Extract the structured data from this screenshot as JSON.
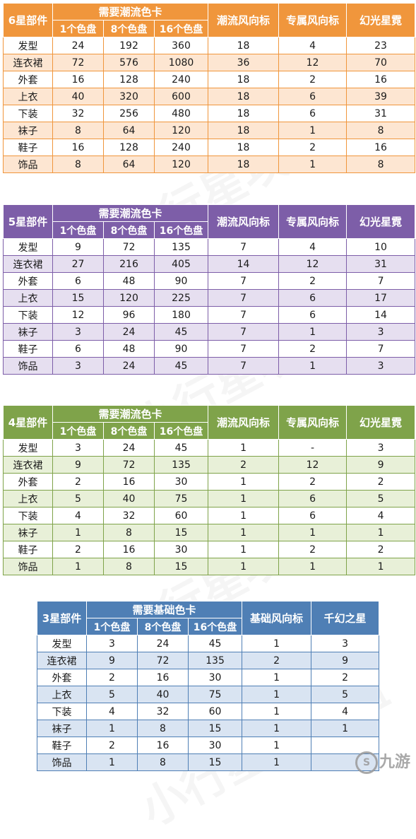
{
  "tables": [
    {
      "id": "t6",
      "colors": {
        "head": "#f0963c",
        "border": "#f0963c",
        "odd": "#ffffff",
        "even": "#fde6d2"
      },
      "head": {
        "part": "6星部件",
        "group": "需要潮流色卡",
        "sub": [
          "1个色盘",
          "8个色盘",
          "16个色盘"
        ],
        "extra": [
          "潮流风向标",
          "专属风向标",
          "幻光星霓"
        ]
      },
      "rows": [
        {
          "part": "发型",
          "vals": [
            "24",
            "192",
            "360",
            "18",
            "4",
            "23"
          ]
        },
        {
          "part": "连衣裙",
          "vals": [
            "72",
            "576",
            "1080",
            "36",
            "12",
            "70"
          ]
        },
        {
          "part": "外套",
          "vals": [
            "16",
            "128",
            "240",
            "18",
            "2",
            "16"
          ]
        },
        {
          "part": "上衣",
          "vals": [
            "40",
            "320",
            "600",
            "18",
            "6",
            "39"
          ]
        },
        {
          "part": "下装",
          "vals": [
            "32",
            "256",
            "480",
            "18",
            "6",
            "31"
          ]
        },
        {
          "part": "袜子",
          "vals": [
            "8",
            "64",
            "120",
            "18",
            "1",
            "8"
          ]
        },
        {
          "part": "鞋子",
          "vals": [
            "16",
            "128",
            "240",
            "18",
            "2",
            "16"
          ]
        },
        {
          "part": "饰品",
          "vals": [
            "8",
            "64",
            "120",
            "18",
            "1",
            "8"
          ]
        }
      ]
    },
    {
      "id": "t5",
      "colors": {
        "head": "#7d5ea8",
        "border": "#7d5ea8",
        "odd": "#ffffff",
        "even": "#e6dff0"
      },
      "head": {
        "part": "5星部件",
        "group": "需要潮流色卡",
        "sub": [
          "1个色盘",
          "8个色盘",
          "16个色盘"
        ],
        "extra": [
          "潮流风向标",
          "专属风向标",
          "幻光星霓"
        ]
      },
      "rows": [
        {
          "part": "发型",
          "vals": [
            "9",
            "72",
            "135",
            "7",
            "4",
            "10"
          ]
        },
        {
          "part": "连衣裙",
          "vals": [
            "27",
            "216",
            "405",
            "14",
            "12",
            "31"
          ]
        },
        {
          "part": "外套",
          "vals": [
            "6",
            "48",
            "90",
            "7",
            "2",
            "7"
          ]
        },
        {
          "part": "上衣",
          "vals": [
            "15",
            "120",
            "225",
            "7",
            "6",
            "17"
          ]
        },
        {
          "part": "下装",
          "vals": [
            "12",
            "96",
            "180",
            "7",
            "6",
            "14"
          ]
        },
        {
          "part": "袜子",
          "vals": [
            "3",
            "24",
            "45",
            "7",
            "1",
            "3"
          ]
        },
        {
          "part": "鞋子",
          "vals": [
            "6",
            "48",
            "90",
            "7",
            "2",
            "7"
          ]
        },
        {
          "part": "饰品",
          "vals": [
            "3",
            "24",
            "45",
            "7",
            "1",
            "3"
          ]
        }
      ]
    },
    {
      "id": "t4",
      "colors": {
        "head": "#7fa34a",
        "border": "#7fa34a",
        "odd": "#ffffff",
        "even": "#e8f0d8"
      },
      "head": {
        "part": "4星部件",
        "group": "需要潮流色卡",
        "sub": [
          "1个色盘",
          "8个色盘",
          "16个色盘"
        ],
        "extra": [
          "潮流风向标",
          "专属风向标",
          "幻光星霓"
        ]
      },
      "rows": [
        {
          "part": "发型",
          "vals": [
            "3",
            "24",
            "45",
            "1",
            "-",
            "3"
          ]
        },
        {
          "part": "连衣裙",
          "vals": [
            "9",
            "72",
            "135",
            "2",
            "12",
            "9"
          ]
        },
        {
          "part": "外套",
          "vals": [
            "2",
            "16",
            "30",
            "1",
            "2",
            "2"
          ]
        },
        {
          "part": "上衣",
          "vals": [
            "5",
            "40",
            "75",
            "1",
            "6",
            "5"
          ]
        },
        {
          "part": "下装",
          "vals": [
            "4",
            "32",
            "60",
            "1",
            "6",
            "4"
          ]
        },
        {
          "part": "袜子",
          "vals": [
            "1",
            "8",
            "15",
            "1",
            "1",
            "1"
          ]
        },
        {
          "part": "鞋子",
          "vals": [
            "2",
            "16",
            "30",
            "1",
            "2",
            "2"
          ]
        },
        {
          "part": "饰品",
          "vals": [
            "1",
            "8",
            "15",
            "1",
            "1",
            "1"
          ]
        }
      ]
    },
    {
      "id": "t3",
      "colors": {
        "head": "#4f7fb5",
        "border": "#4f7fb5",
        "odd": "#ffffff",
        "even": "#d9e4f2"
      },
      "head": {
        "part": "3星部件",
        "group": "需要基础色卡",
        "sub": [
          "1个色盘",
          "8个色盘",
          "16个色盘"
        ],
        "extra": [
          "基础风向标",
          "千幻之星"
        ]
      },
      "rows": [
        {
          "part": "发型",
          "vals": [
            "3",
            "24",
            "45",
            "1",
            "3"
          ]
        },
        {
          "part": "连衣裙",
          "vals": [
            "9",
            "72",
            "135",
            "2",
            "9"
          ]
        },
        {
          "part": "外套",
          "vals": [
            "2",
            "16",
            "30",
            "1",
            "2"
          ]
        },
        {
          "part": "上衣",
          "vals": [
            "5",
            "40",
            "75",
            "1",
            "5"
          ]
        },
        {
          "part": "下装",
          "vals": [
            "4",
            "32",
            "60",
            "1",
            "4"
          ]
        },
        {
          "part": "袜子",
          "vals": [
            "1",
            "8",
            "15",
            "1",
            "1"
          ]
        },
        {
          "part": "鞋子",
          "vals": [
            "2",
            "16",
            "30",
            "1",
            ""
          ]
        },
        {
          "part": "饰品",
          "vals": [
            "1",
            "8",
            "15",
            "1",
            ""
          ]
        }
      ]
    }
  ],
  "watermark": "小行星攻略组",
  "logo": {
    "glyph": "S",
    "text": "九游"
  }
}
